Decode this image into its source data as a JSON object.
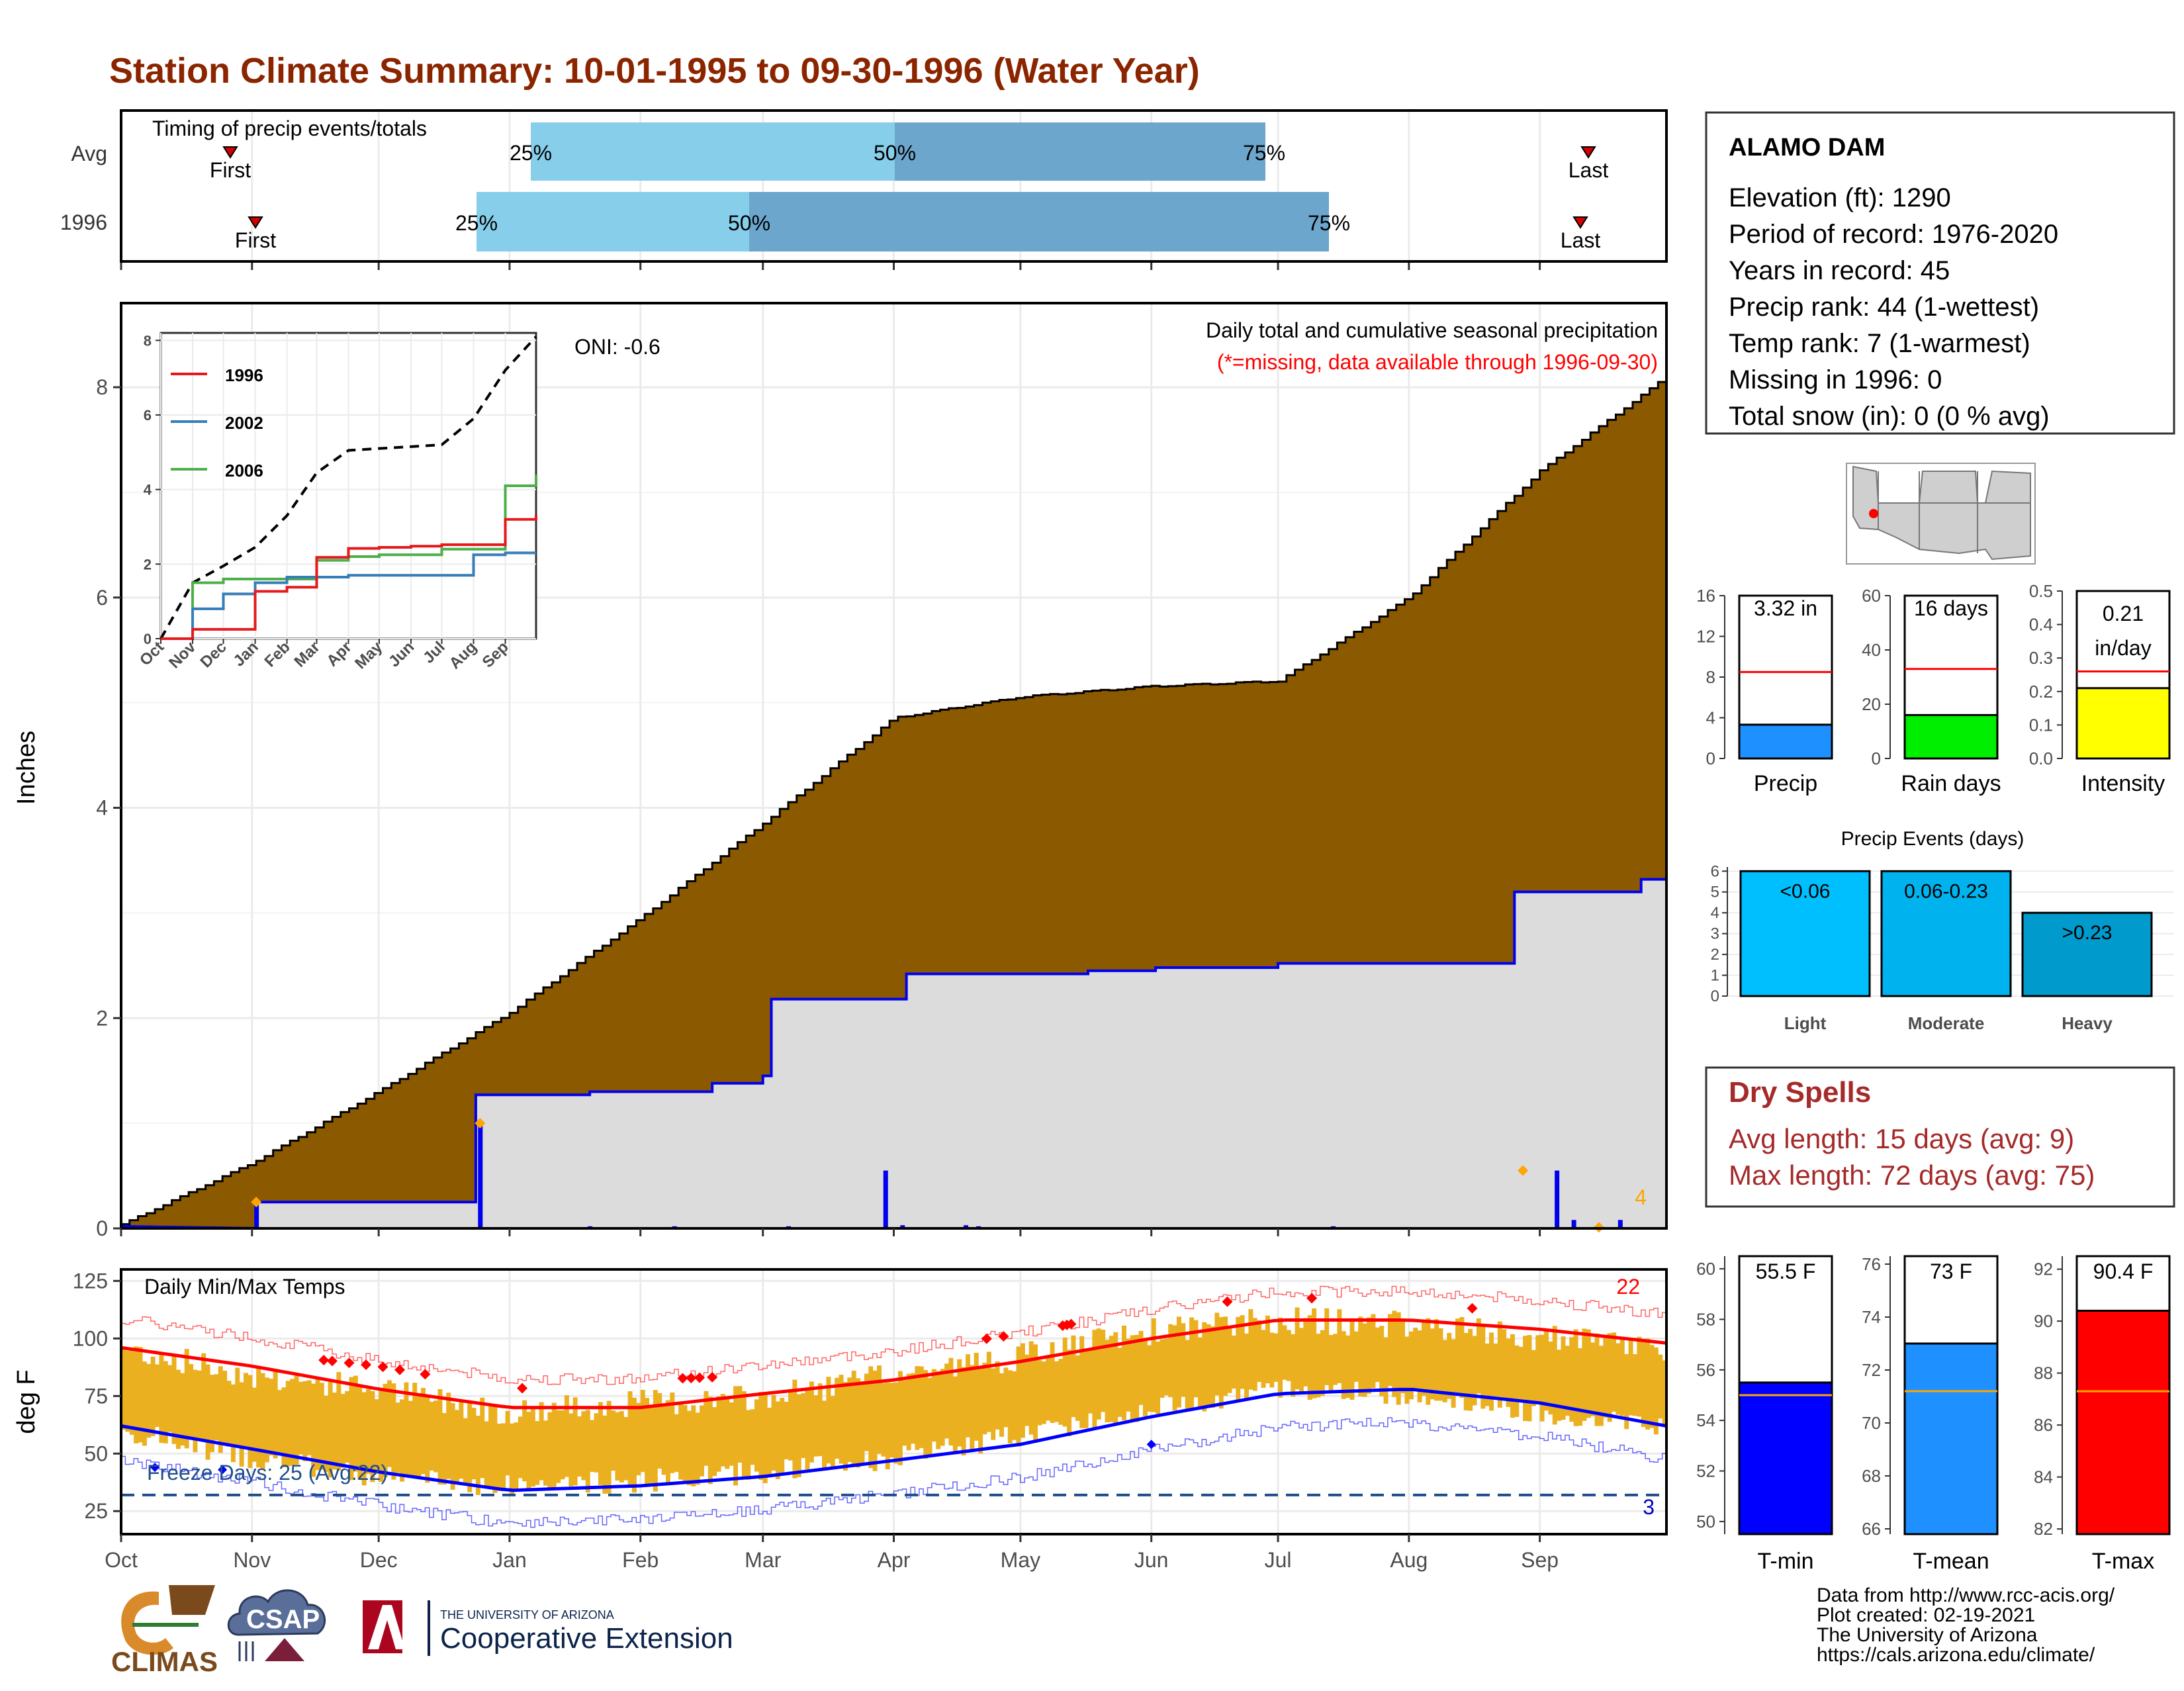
{
  "title": "Station Climate Summary: 10-01-1995 to 09-30-1996 (Water Year)",
  "colors": {
    "title": "#8B2500",
    "cum_fill": "#8B5A00",
    "avg_fill": "#DCDCDC",
    "precip_line": "#0000EE",
    "light_blue": "#87CEEB",
    "steel_blue": "#6CA6CD",
    "temp_bar": "#EAB020",
    "tmax": "#FF0000",
    "tmin": "#0000FF",
    "freeze": "#1F4E8C",
    "dryspell": "#A52A2A",
    "extreme": "#FFA500"
  },
  "months": [
    "Oct",
    "Nov",
    "Dec",
    "Jan",
    "Feb",
    "Mar",
    "Apr",
    "May",
    "Jun",
    "Jul",
    "Aug",
    "Sep"
  ],
  "timing": {
    "label": "Timing of precip events/totals",
    "rows": [
      {
        "name": "Avg",
        "first": "First",
        "last": "Last",
        "p25": "25%",
        "p50": "50%",
        "p75": "75%"
      },
      {
        "name": "1996",
        "first": "First",
        "last": "Last",
        "p25": "25%",
        "p50": "50%",
        "p75": "75%"
      }
    ]
  },
  "main": {
    "ylabel": "Inches",
    "oni": "ONI: -0.6",
    "desc1": "Daily total and cumulative seasonal precipitation",
    "desc2": "(*=missing, data available through 1996-09-30)",
    "extreme_count": "4",
    "yticks": [
      "0",
      "2",
      "4",
      "6",
      "8"
    ]
  },
  "inset": {
    "yticks": [
      "0",
      "2",
      "4",
      "6",
      "8"
    ],
    "xticks": [
      "Oct",
      "Nov",
      "Dec",
      "Jan",
      "Feb",
      "Mar",
      "Apr",
      "May",
      "Jun",
      "Jul",
      "Aug",
      "Sep"
    ],
    "legend": [
      "1996",
      "2002",
      "2006"
    ]
  },
  "temps": {
    "ylabel": "deg F",
    "label": "Daily Min/Max Temps",
    "hot_count": "22",
    "freeze_label": "Freeze Days: 25 (Avg:22)",
    "freeze_count": "3",
    "yticks": [
      "25",
      "50",
      "75",
      "100",
      "125"
    ]
  },
  "station": {
    "name": "ALAMO DAM",
    "lines": [
      "Elevation (ft): 1290",
      "Period of record: 1976-2020",
      "Years in record: 45",
      "Precip rank: 44 (1-wettest)",
      "Temp rank: 7 (1-warmest)",
      "Missing in 1996: 0",
      "Total snow (in): 0 (0 % avg)"
    ]
  },
  "minibars": [
    {
      "label": "Precip",
      "value_text": "3.32 in",
      "ticks": [
        "0",
        "4",
        "8",
        "12",
        "16"
      ]
    },
    {
      "label": "Rain days",
      "value_text": "16 days",
      "ticks": [
        "0",
        "20",
        "40",
        "60"
      ]
    },
    {
      "label": "Intensity",
      "value_text_1": "0.21",
      "value_text_2": "in/day",
      "ticks": [
        "0.0",
        "0.1",
        "0.2",
        "0.3",
        "0.4",
        "0.5"
      ]
    }
  ],
  "events": {
    "title": "Precip Events (days)",
    "bars": [
      {
        "label": "Light",
        "text": "<0.06"
      },
      {
        "label": "Moderate",
        "text": "0.06-0.23"
      },
      {
        "label": "Heavy",
        "text": ">0.23"
      }
    ],
    "ticks": [
      "0",
      "1",
      "2",
      "3",
      "4",
      "5",
      "6"
    ]
  },
  "dryspells": {
    "title": "Dry Spells",
    "avg": "Avg length: 15 days (avg: 9)",
    "max": "Max length: 72 days (avg: 75)"
  },
  "tempbars": [
    {
      "label": "T-min",
      "value_text": "55.5 F",
      "ticks": [
        "50",
        "52",
        "54",
        "56",
        "58",
        "60"
      ]
    },
    {
      "label": "T-mean",
      "value_text": "73 F",
      "ticks": [
        "66",
        "68",
        "70",
        "72",
        "74",
        "76"
      ]
    },
    {
      "label": "T-max",
      "value_text": "90.4 F",
      "ticks": [
        "82",
        "84",
        "86",
        "88",
        "90",
        "92"
      ]
    }
  ],
  "footer": {
    "lines": [
      "Data from http://www.rcc-acis.org/",
      "Plot created: 02-19-2021",
      "The University of Arizona",
      "https://cals.arizona.edu/climate/"
    ],
    "climas": "CLIMAS",
    "csap": "CSAP",
    "ua_small": "THE UNIVERSITY OF ARIZONA",
    "ua_big": "Cooperative Extension"
  },
  "chart_data": [
    {
      "type": "area",
      "x_unit": "month",
      "ylim": [
        0,
        8.8
      ],
      "series": [
        {
          "name": "1996",
          "x": [
            "Oct",
            "Nov",
            "Dec",
            "Jan",
            "Feb",
            "Mar",
            "Apr",
            "May",
            "Jun",
            "Jul",
            "Aug",
            "Sep",
            "Sep-30"
          ],
          "values": [
            0.25,
            0.25,
            0.25,
            1.27,
            1.38,
            2.18,
            2.42,
            2.45,
            2.48,
            2.52,
            2.52,
            3.2,
            3.32
          ]
        }
      ],
      "avg_cumulative": {
        "x": [
          "Oct",
          "Nov",
          "Dec",
          "Jan",
          "Feb",
          "Mar",
          "Apr",
          "May",
          "Jun",
          "Jul",
          "Aug",
          "Sep",
          "Sep-30"
        ],
        "values": [
          0.03,
          0.62,
          1.3,
          2.05,
          2.95,
          3.85,
          4.85,
          5.05,
          5.15,
          5.2,
          6.0,
          7.2,
          8.1
        ]
      }
    },
    {
      "type": "line",
      "title": "",
      "ylim": [
        0,
        8
      ],
      "x": [
        "Oct",
        "Nov",
        "Dec",
        "Jan",
        "Feb",
        "Mar",
        "Apr",
        "May",
        "Jun",
        "Jul",
        "Aug",
        "Sep",
        "Sep-30"
      ],
      "series": [
        {
          "name": "1996",
          "values": [
            0,
            0.25,
            0.25,
            1.27,
            1.38,
            2.18,
            2.42,
            2.45,
            2.48,
            2.52,
            2.52,
            3.2,
            3.32
          ]
        },
        {
          "name": "2002",
          "values": [
            0,
            0.8,
            1.2,
            1.5,
            1.65,
            1.65,
            1.7,
            1.7,
            1.7,
            1.7,
            2.25,
            2.3,
            2.3
          ]
        },
        {
          "name": "2006",
          "values": [
            0,
            1.5,
            1.6,
            1.6,
            1.6,
            2.1,
            2.2,
            2.25,
            2.25,
            2.4,
            2.4,
            4.1,
            4.4
          ]
        },
        {
          "name": "",
          "values": [
            0,
            1.5,
            1.95,
            2.45,
            3.3,
            4.45,
            5.05,
            5.1,
            5.15,
            5.2,
            5.9,
            7.2,
            8.1
          ]
        }
      ]
    },
    {
      "type": "bar",
      "ylim": [
        15,
        130
      ],
      "x": [
        "Oct",
        "Nov",
        "Dec",
        "Jan",
        "Feb",
        "Mar",
        "Apr",
        "May",
        "Jun",
        "Jul",
        "Aug",
        "Sep",
        "Sep-30"
      ],
      "series": [
        {
          "name": "",
          "values": [
            96,
            84,
            78,
            68,
            72,
            74,
            84,
            92,
            103,
            108,
            106,
            100,
            96
          ]
        },
        {
          "name": "",
          "values": [
            60,
            48,
            40,
            36,
            38,
            42,
            48,
            58,
            70,
            78,
            76,
            68,
            62
          ]
        },
        {
          "name": "",
          "values": [
            96,
            88,
            78,
            70,
            70,
            76,
            82,
            90,
            100,
            108,
            108,
            104,
            98
          ]
        },
        {
          "name": "",
          "values": [
            62,
            52,
            42,
            34,
            36,
            40,
            47,
            54,
            66,
            76,
            78,
            72,
            62
          ]
        }
      ],
      "freeze_line": 32
    },
    {
      "type": "bar",
      "categories": [
        "Precip"
      ],
      "values": [
        3.32
      ],
      "avg": 8.5,
      "ylim": [
        0,
        16
      ]
    },
    {
      "type": "bar",
      "categories": [
        "Rain days"
      ],
      "values": [
        16
      ],
      "avg": 33,
      "ylim": [
        0,
        60
      ]
    },
    {
      "type": "bar",
      "categories": [
        "Intensity"
      ],
      "values": [
        0.21
      ],
      "avg": 0.26,
      "ylim": [
        0,
        0.5
      ]
    },
    {
      "type": "bar",
      "categories": [
        "Light",
        "Moderate",
        "Heavy"
      ],
      "values": [
        6,
        6,
        4
      ],
      "ylim": [
        0,
        6.2
      ]
    },
    {
      "type": "bar",
      "categories": [
        "T-min"
      ],
      "values": [
        55.5
      ],
      "avg": 55.0,
      "ylim": [
        49.5,
        60.5
      ]
    },
    {
      "type": "bar",
      "categories": [
        "T-mean"
      ],
      "values": [
        73
      ],
      "avg": 71.2,
      "ylim": [
        65.8,
        76.3
      ]
    },
    {
      "type": "bar",
      "categories": [
        "T-max"
      ],
      "values": [
        90.4
      ],
      "avg": 87.3,
      "ylim": [
        81.8,
        92.5
      ]
    }
  ]
}
